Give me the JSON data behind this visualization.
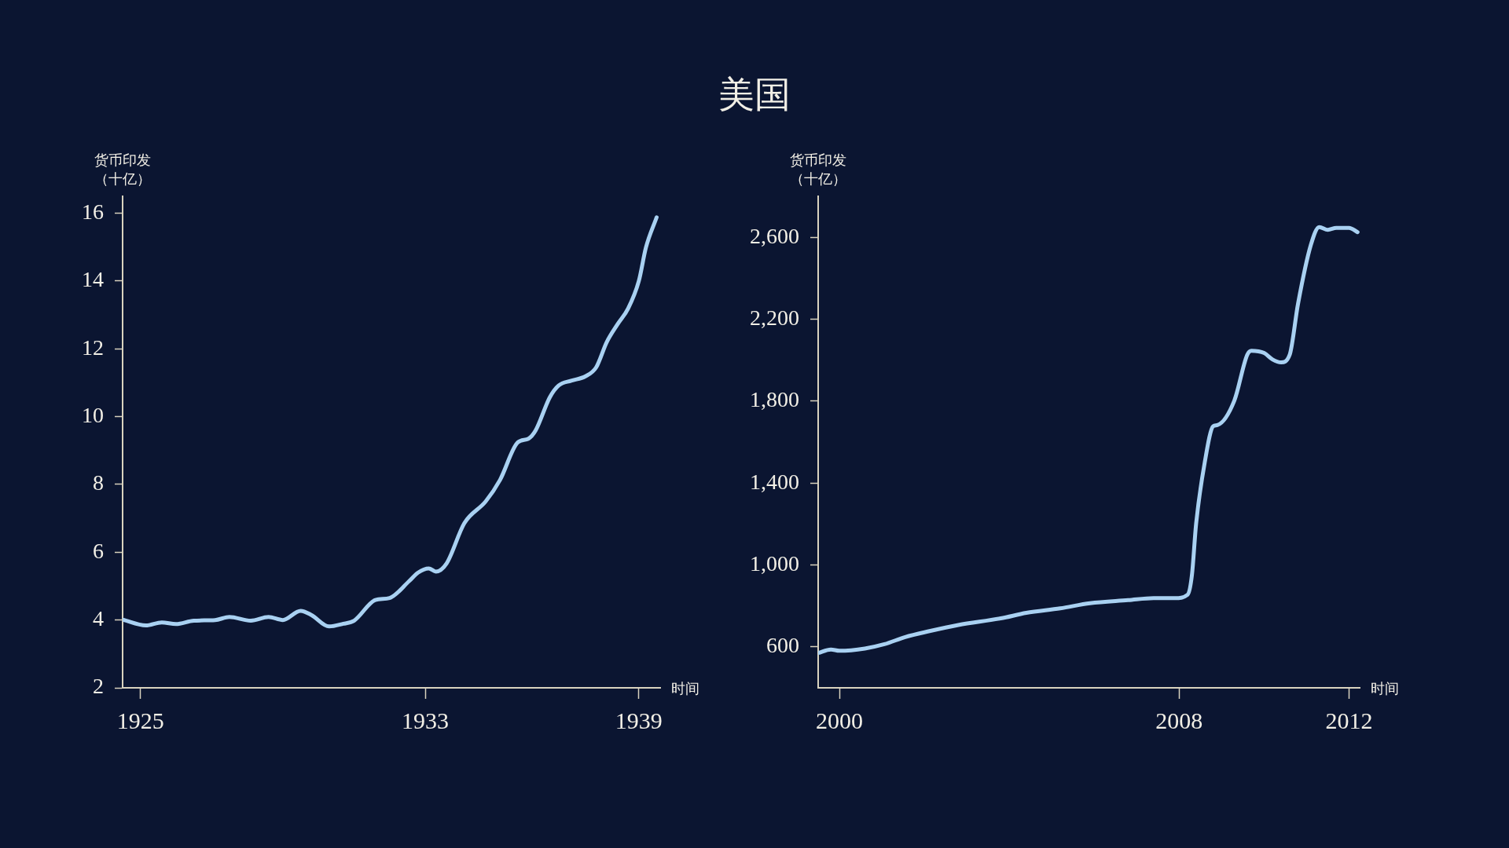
{
  "chart_data": [
    {
      "type": "line",
      "ylabel": "货币印发（十亿）",
      "xlabel": "时间",
      "color": "#a9d1f2",
      "xlim": [
        1924.5,
        1939.6
      ],
      "xticks": [
        1925,
        1933,
        1939
      ],
      "ylim": [
        2,
        16.5
      ],
      "yticks": [
        2,
        4,
        6,
        8,
        10,
        12,
        14,
        16
      ],
      "x": [
        1924.5,
        1925.15,
        1925.6,
        1926.0,
        1926.5,
        1927.1,
        1927.5,
        1928.1,
        1928.6,
        1929.0,
        1929.5,
        1929.8,
        1930.3,
        1930.7,
        1931.0,
        1931.6,
        1932.0,
        1932.55,
        1932.8,
        1933.1,
        1933.3,
        1933.6,
        1934.1,
        1934.7,
        1935.1,
        1935.6,
        1935.9,
        1936.1,
        1936.5,
        1936.75,
        1937.1,
        1937.5,
        1937.8,
        1938.1,
        1938.4,
        1938.7,
        1939.0,
        1939.2,
        1939.5
      ],
      "values": [
        4.01,
        3.84,
        3.93,
        3.88,
        3.98,
        4.0,
        4.09,
        3.98,
        4.09,
        4.0,
        4.27,
        4.15,
        3.81,
        3.89,
        3.98,
        4.59,
        4.65,
        5.15,
        5.4,
        5.52,
        5.43,
        5.67,
        6.86,
        7.5,
        8.13,
        9.24,
        9.35,
        9.59,
        10.57,
        10.92,
        11.06,
        11.19,
        11.45,
        12.2,
        12.72,
        13.19,
        14.0,
        14.99,
        15.88
      ]
    },
    {
      "type": "line",
      "title": "美国",
      "ylabel": "货币印发（十亿）",
      "xlabel": "时间",
      "color": "#a9d1f2",
      "xlim": [
        1999.5,
        2012.25
      ],
      "xticks": [
        2000,
        2008,
        2012
      ],
      "ylim": [
        400,
        2800
      ],
      "yticks": [
        {
          "value": 600,
          "label": "600"
        },
        {
          "value": 1000,
          "label": "1,000"
        },
        {
          "value": 1400,
          "label": "1,400"
        },
        {
          "value": 1800,
          "label": "1,800"
        },
        {
          "value": 2200,
          "label": "2,200"
        },
        {
          "value": 2600,
          "label": "2,600"
        }
      ],
      "x": [
        1999.5,
        1999.8,
        2000.0,
        2000.6,
        2001.06,
        2001.55,
        2002.1,
        2002.8,
        2003.8,
        2004.4,
        2005.2,
        2005.9,
        2006.8,
        2007.4,
        2007.9,
        2008.2,
        2008.3,
        2008.4,
        2008.6,
        2008.8,
        2008.9,
        2009.3,
        2009.6,
        2009.7,
        2010.0,
        2010.2,
        2010.4,
        2010.6,
        2010.8,
        2011.1,
        2011.3,
        2011.5,
        2011.7,
        2012.0,
        2012.2
      ],
      "values": [
        570,
        587,
        581,
        592,
        613,
        648,
        676,
        707,
        739,
        766,
        788,
        813,
        828,
        838,
        838,
        855,
        950,
        1203,
        1498,
        1677,
        1683,
        1803,
        2025,
        2046,
        2035,
        2003,
        1989,
        2025,
        2277,
        2562,
        2650,
        2636,
        2646,
        2646,
        2625
      ]
    }
  ]
}
